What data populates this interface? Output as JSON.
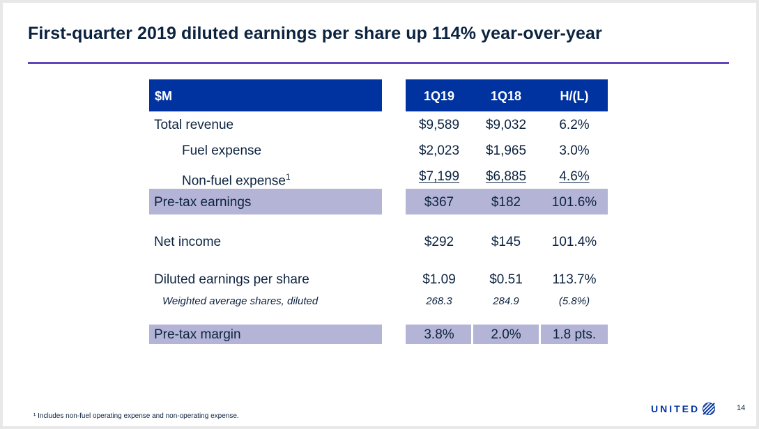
{
  "slide": {
    "title": "First-quarter 2019 diluted earnings per share up 114% year-over-year",
    "footnote": "¹ Includes non-fuel operating expense and non-operating expense.",
    "page_number": "14",
    "logo_text": "UNITED"
  },
  "table": {
    "headers": {
      "label": "$M",
      "q1_19": "1Q19",
      "q1_18": "1Q18",
      "change": "H/(L)"
    },
    "rows": {
      "total_revenue": {
        "label": "Total revenue",
        "q1_19": "$9,589",
        "q1_18": "$9,032",
        "change": "6.2%"
      },
      "fuel_expense": {
        "label": "Fuel expense",
        "q1_19": "$2,023",
        "q1_18": "$1,965",
        "change": "3.0%"
      },
      "nonfuel_expense": {
        "label": "Non-fuel expense",
        "sup": "1",
        "q1_19": "$7,199",
        "q1_18": "$6,885",
        "change": "4.6%"
      },
      "pretax_earnings": {
        "label": "Pre-tax earnings",
        "q1_19": "$367",
        "q1_18": "$182",
        "change": "101.6%"
      },
      "net_income": {
        "label": "Net income",
        "q1_19": "$292",
        "q1_18": "$145",
        "change": "101.4%"
      },
      "diluted_eps": {
        "label": "Diluted earnings per share",
        "q1_19": "$1.09",
        "q1_18": "$0.51",
        "change": "113.7%"
      },
      "weighted_shares": {
        "label": "Weighted average shares, diluted",
        "q1_19": "268.3",
        "q1_18": "284.9",
        "change": "(5.8%)"
      },
      "pretax_margin": {
        "label": "Pre-tax margin",
        "q1_19": "3.8%",
        "q1_18": "2.0%",
        "change": "1.8 pts."
      }
    }
  },
  "colors": {
    "navy": "#0c2340",
    "header_blue": "#0033a0",
    "band_lavender": "#b4b4d6",
    "accent_purple": "#6244bb"
  }
}
